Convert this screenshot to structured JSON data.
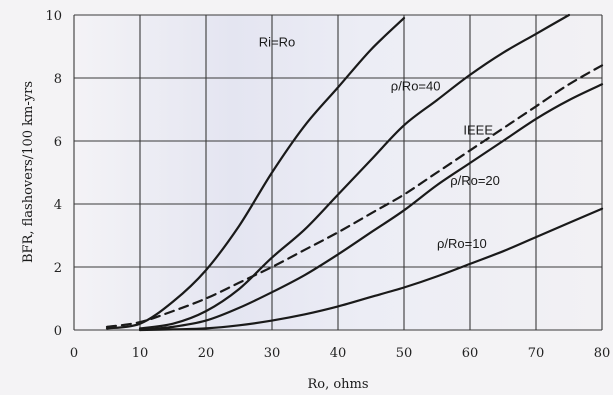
{
  "chart_data": {
    "type": "line",
    "xlabel": "Ro, ohms",
    "ylabel": "BFR, flashovers/100 km-yrs",
    "xlim": [
      0,
      80
    ],
    "ylim": [
      0,
      10
    ],
    "x_ticks": [
      "0",
      "10",
      "20",
      "30",
      "40",
      "50",
      "60",
      "70",
      "80"
    ],
    "y_ticks": [
      "0",
      "2",
      "4",
      "6",
      "8",
      "10"
    ],
    "grid": true,
    "series": [
      {
        "name": "Ri=Ro",
        "style": "solid",
        "color": "#1a1a1a",
        "x": [
          5,
          10,
          15,
          20,
          25,
          30,
          35,
          40,
          45,
          50
        ],
        "y": [
          0.05,
          0.2,
          0.9,
          1.9,
          3.3,
          5.0,
          6.5,
          7.7,
          8.9,
          9.9
        ]
      },
      {
        "name": "ρ/Ro=40",
        "style": "solid",
        "color": "#1a1a1a",
        "x": [
          10,
          15,
          20,
          25,
          30,
          35,
          40,
          45,
          50,
          55,
          60,
          65,
          70,
          75
        ],
        "y": [
          0.05,
          0.2,
          0.6,
          1.3,
          2.3,
          3.2,
          4.3,
          5.4,
          6.5,
          7.3,
          8.1,
          8.8,
          9.4,
          10.0
        ]
      },
      {
        "name": "IEEE",
        "style": "dashed",
        "color": "#1a1a1a",
        "x": [
          5,
          10,
          15,
          20,
          25,
          30,
          35,
          40,
          45,
          50,
          55,
          60,
          65,
          70,
          75,
          80
        ],
        "y": [
          0.1,
          0.25,
          0.6,
          1.0,
          1.5,
          2.0,
          2.55,
          3.1,
          3.7,
          4.3,
          5.0,
          5.7,
          6.4,
          7.1,
          7.8,
          8.4
        ]
      },
      {
        "name": "ρ/Ro=20",
        "style": "solid",
        "color": "#1a1a1a",
        "x": [
          10,
          15,
          20,
          25,
          30,
          35,
          40,
          45,
          50,
          55,
          60,
          65,
          70,
          75,
          80
        ],
        "y": [
          0.0,
          0.1,
          0.3,
          0.7,
          1.2,
          1.75,
          2.4,
          3.1,
          3.8,
          4.6,
          5.3,
          6.0,
          6.7,
          7.3,
          7.8
        ]
      },
      {
        "name": "ρ/Ro=10",
        "style": "solid",
        "color": "#1a1a1a",
        "x": [
          10,
          15,
          20,
          25,
          30,
          35,
          40,
          45,
          50,
          55,
          60,
          65,
          70,
          75,
          80
        ],
        "y": [
          0.0,
          0.02,
          0.05,
          0.15,
          0.3,
          0.5,
          0.75,
          1.05,
          1.35,
          1.7,
          2.1,
          2.5,
          2.95,
          3.4,
          3.85
        ]
      }
    ]
  }
}
